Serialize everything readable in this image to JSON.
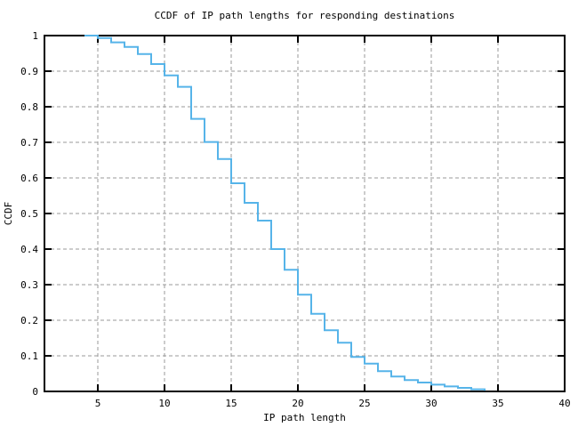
{
  "page": {
    "background": "#ffffff"
  },
  "chart_data": {
    "type": "line",
    "line_style": "step-after",
    "title": "CCDF of IP path lengths for responding destinations",
    "xlabel": "IP path length",
    "ylabel": "CCDF",
    "xlim": [
      1,
      40
    ],
    "ylim": [
      0,
      1
    ],
    "x_ticks": [
      5,
      10,
      15,
      20,
      25,
      30,
      35,
      40
    ],
    "x_tick_labels": [
      "5",
      "10",
      "15",
      "20",
      "25",
      "30",
      "35",
      "40"
    ],
    "y_ticks": [
      0,
      0.1,
      0.2,
      0.3,
      0.4,
      0.5,
      0.6,
      0.7,
      0.8,
      0.9,
      1
    ],
    "y_tick_labels": [
      "0",
      "0.1",
      "0.2",
      "0.3",
      "0.4",
      "0.5",
      "0.6",
      "0.7",
      "0.8",
      "0.9",
      "1"
    ],
    "grid": true,
    "grid_style": "dashed",
    "legend": "none",
    "series": [
      {
        "name": "ccdf-of-ip-path-length",
        "color": "#56B4E9",
        "x": [
          4,
          5,
          6,
          7,
          8,
          9,
          10,
          11,
          12,
          13,
          14,
          15,
          16,
          17,
          18,
          19,
          20,
          21,
          22,
          23,
          24,
          25,
          26,
          27,
          28,
          29,
          30,
          31,
          32,
          33,
          34
        ],
        "y": [
          1.0,
          0.993,
          0.981,
          0.968,
          0.948,
          0.92,
          0.888,
          0.856,
          0.766,
          0.701,
          0.653,
          0.585,
          0.53,
          0.48,
          0.4,
          0.342,
          0.272,
          0.218,
          0.172,
          0.137,
          0.097,
          0.078,
          0.057,
          0.042,
          0.032,
          0.025,
          0.019,
          0.014,
          0.01,
          0.006,
          0.002
        ]
      }
    ]
  },
  "colors": {
    "background": "#ffffff",
    "line": "#56B4E9",
    "grid": "#9a9a9a",
    "axis": "#000000",
    "text": "#000000"
  }
}
